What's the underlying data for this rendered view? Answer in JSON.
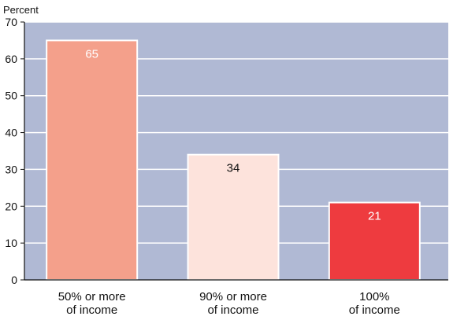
{
  "chart_data": {
    "type": "bar",
    "ylabel": "Percent",
    "ylim": [
      0,
      70
    ],
    "yticks": [
      0,
      10,
      20,
      30,
      40,
      50,
      60,
      70
    ],
    "grid": true,
    "categories": [
      [
        "50% or more",
        "of income"
      ],
      [
        "90% or more",
        "of income"
      ],
      [
        "100%",
        "of income"
      ]
    ],
    "values": [
      65,
      34,
      21
    ],
    "value_labels": [
      "65",
      "34",
      "21"
    ],
    "bar_colors": [
      "#f4a08b",
      "#fde3dc",
      "#ee3b3f"
    ],
    "label_colors": [
      "#ffffff",
      "#111111",
      "#ffffff"
    ],
    "plot_background": "#b0b9d4",
    "gridline_color": "#ffffff"
  }
}
